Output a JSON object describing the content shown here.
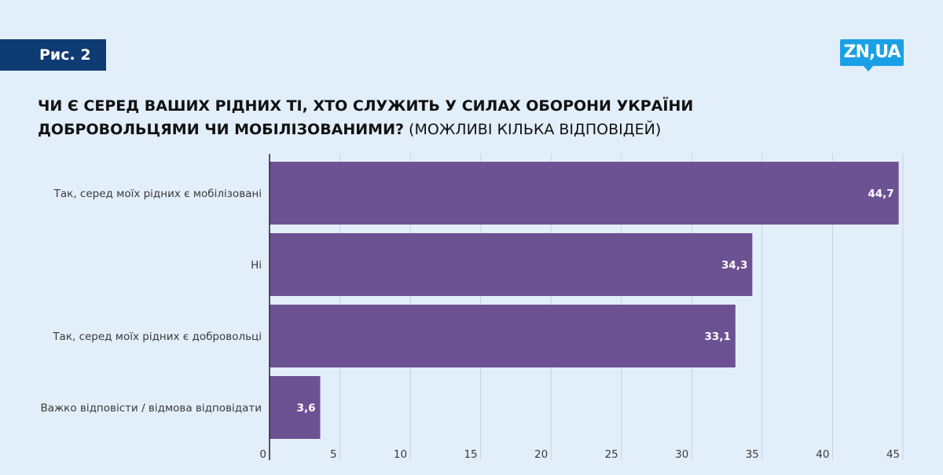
{
  "figure_label": "Рис. 2",
  "logo_text": "ZN,UA",
  "title_bold": "ЧИ Є СЕРЕД ВАШИХ РІДНИХ ТІ, ХТО СЛУЖИТЬ У СИЛАХ ОБОРОНИ УКРАЇНИ ДОБРОВОЛЬЦЯМИ ЧИ МОБІЛІЗОВАНИМИ?",
  "title_rest": " (МОЖЛИВІ КІЛЬКА ВІДПОВІДЕЙ)",
  "colors": {
    "bar": "#6d5293",
    "background": "#e3eefb",
    "badge": "#0f3b73",
    "logo": "#1aa0e6"
  },
  "chart_data": {
    "type": "bar",
    "orientation": "horizontal",
    "categories": [
      "Так, серед моїх рідних є мобілізовані",
      "Ні",
      "Так, серед моїх рідних є добровольці",
      "Важко відповісти / відмова відповідати"
    ],
    "values": [
      44.7,
      34.3,
      33.1,
      3.6
    ],
    "value_labels": [
      "44,7",
      "34,3",
      "33,1",
      "3,6"
    ],
    "xlim": [
      0,
      45
    ],
    "xticks": [
      "0",
      "5",
      "10",
      "15",
      "20",
      "25",
      "30",
      "35",
      "40",
      "45"
    ],
    "grid": true
  }
}
